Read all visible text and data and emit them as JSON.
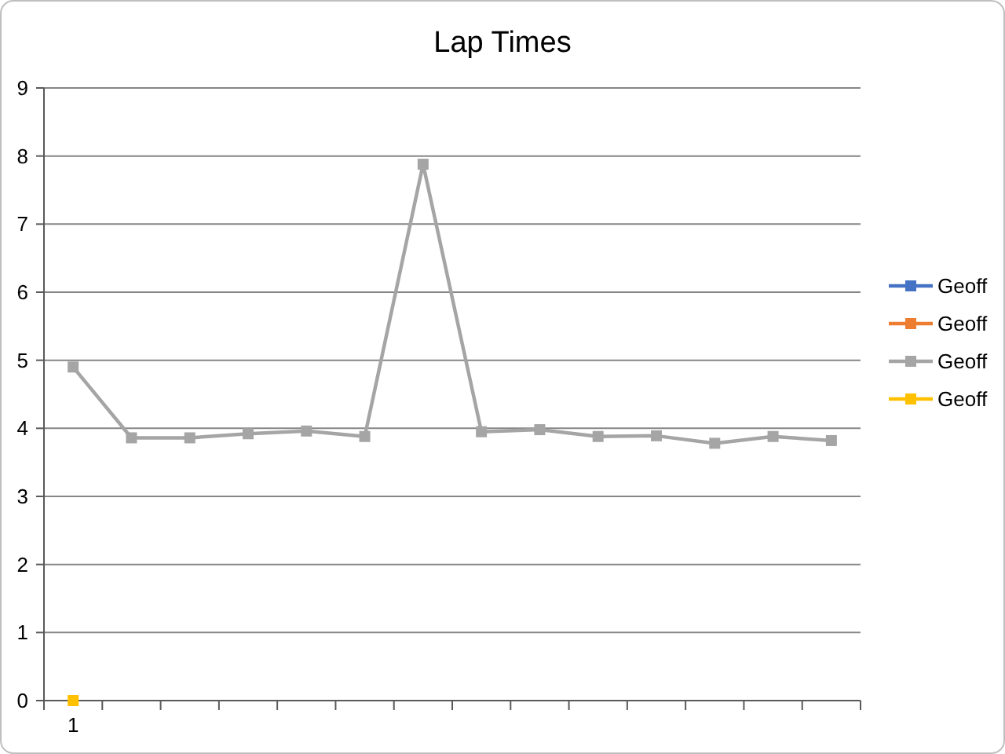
{
  "chart_data": {
    "type": "line",
    "title": "Lap Times",
    "categories": [
      "1",
      null,
      null,
      null,
      null,
      null,
      null,
      null,
      null,
      null,
      null,
      null,
      null,
      null
    ],
    "series": [
      {
        "name": "Geoff",
        "color": "#4472c4",
        "values": [
          null,
          null,
          null,
          null,
          null,
          null,
          null,
          null,
          null,
          null,
          null,
          null,
          null,
          null
        ]
      },
      {
        "name": "Geoff",
        "color": "#ed7d31",
        "values": [
          null,
          null,
          null,
          null,
          null,
          null,
          null,
          null,
          null,
          null,
          null,
          null,
          null,
          null
        ]
      },
      {
        "name": "Geoff",
        "color": "#a5a5a5",
        "values": [
          4.9,
          3.86,
          3.86,
          3.92,
          3.96,
          3.88,
          7.88,
          3.95,
          3.98,
          3.88,
          3.89,
          3.78,
          3.88,
          3.82
        ]
      },
      {
        "name": "Geoff",
        "color": "#ffc000",
        "values": [
          0,
          null,
          null,
          null,
          null,
          null,
          null,
          null,
          null,
          null,
          null,
          null,
          null,
          null
        ]
      }
    ],
    "ylim": [
      0,
      9
    ],
    "yticks": [
      0,
      1,
      2,
      3,
      4,
      5,
      6,
      7,
      8,
      9
    ],
    "grid": "y",
    "legend": "right",
    "marker": "square"
  }
}
